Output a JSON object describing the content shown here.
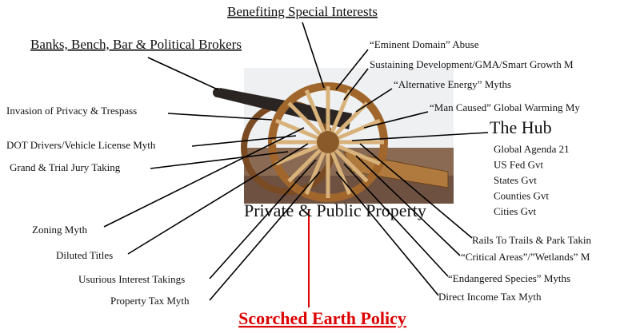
{
  "top_label": "Benefiting Special Interests",
  "top_left_label": "Banks, Bench, Bar & Political Brokers",
  "spokes": [
    "“Eminent Domain” Abuse",
    "Sustaining Development/GMA/Smart Growth M",
    "“Alternative Energy” Myths",
    "“Man Caused” Global Warming My",
    "Invasion of Privacy & Trespass",
    "DOT Drivers/Vehicle License Myth",
    "Grand & Trial Jury Taking",
    "Zoning Myth",
    "Diluted Titles",
    "Usurious Interest Takings",
    "Property Tax Myth",
    "Rails To Trails & Park Takin",
    "“Critical Areas”/”Wetlands” M",
    "“Endangered Species” Myths",
    "Direct Income Tax Myth"
  ],
  "hub": {
    "label": "The Hub",
    "items": [
      "Global Agenda 21",
      "US Fed Gvt",
      "States Gvt",
      "Counties Gvt",
      "Cities Gvt"
    ]
  },
  "center_label": "Private & Public Property",
  "bottom_label": "Scorched Earth Policy"
}
